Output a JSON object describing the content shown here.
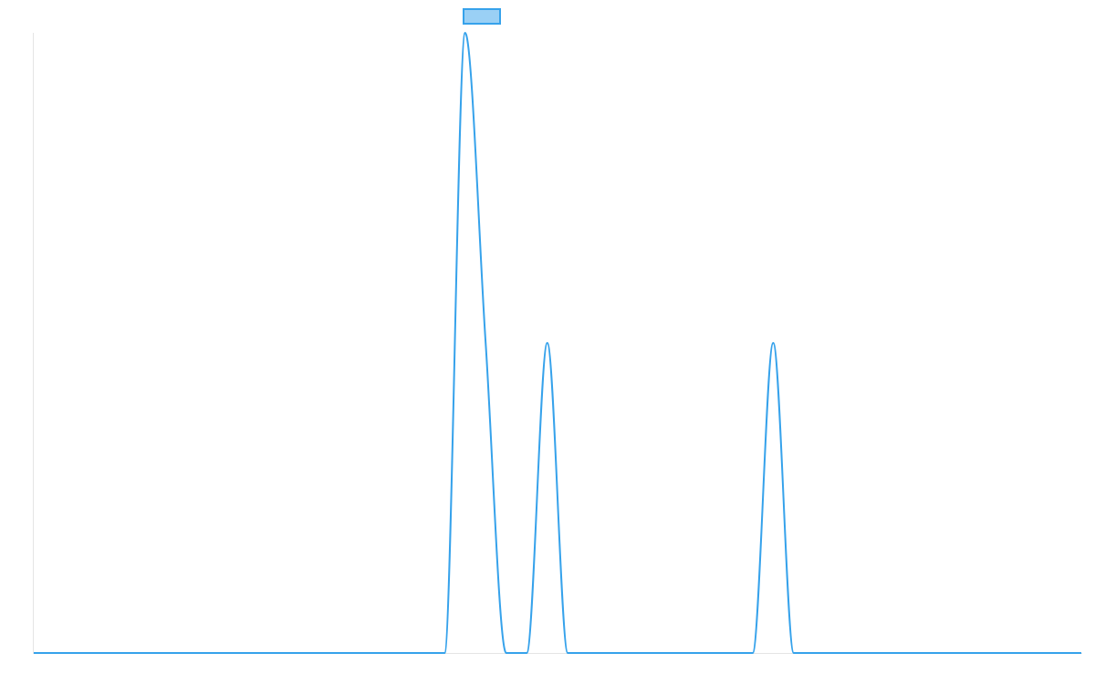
{
  "chart_data": {
    "type": "line",
    "title": "",
    "xlabel": "",
    "ylabel": "",
    "x": [
      0,
      1,
      2,
      3,
      4,
      5,
      6,
      7,
      8,
      9,
      10,
      11,
      12,
      13,
      14,
      15,
      16,
      17,
      18,
      19,
      20,
      21,
      22,
      23,
      24,
      25,
      26,
      27,
      28,
      29,
      30,
      31,
      32,
      33,
      34,
      35,
      36,
      37,
      38,
      39,
      40,
      41,
      42,
      43,
      44,
      45,
      46,
      47,
      48,
      49,
      50,
      51
    ],
    "series": [
      {
        "values": [
          0,
          0,
          0,
          0,
          0,
          0,
          0,
          0,
          0,
          0,
          0,
          0,
          0,
          0,
          0,
          0,
          0,
          0,
          0,
          0,
          0,
          1,
          0.5,
          0,
          0,
          0.5,
          0,
          0,
          0,
          0,
          0,
          0,
          0,
          0,
          0,
          0,
          0.5,
          0,
          0,
          0,
          0,
          0,
          0,
          0,
          0,
          0,
          0,
          0,
          0,
          0,
          0,
          0
        ],
        "color": "#36a2eb",
        "fill_color": "#9ad0f5"
      }
    ],
    "ylim": [
      0,
      1
    ],
    "grid": false,
    "legend": "top",
    "axis_labels_visible": false,
    "interpolation": "monotone"
  }
}
